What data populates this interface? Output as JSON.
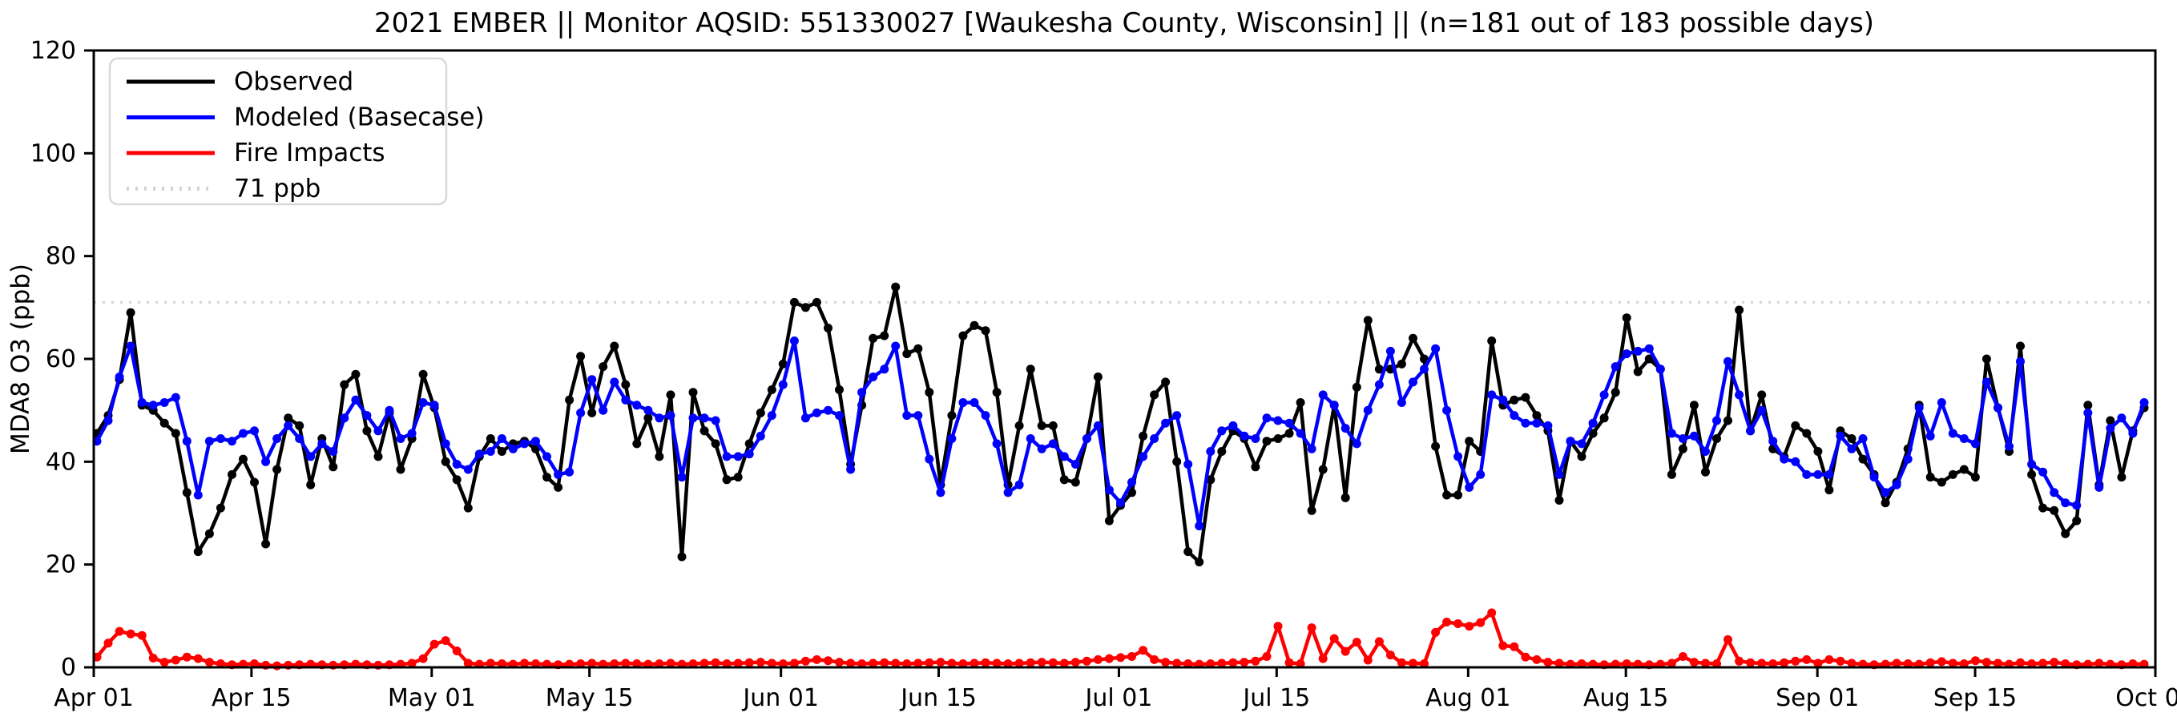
{
  "chart_data": {
    "type": "line",
    "title": "2021 EMBER || Monitor AQSID: 551330027 [Waukesha County, Wisconsin] || (n=181 out of 183 possible days)",
    "ylabel": "MDA8 O3 (ppb)",
    "ylim": [
      0,
      120
    ],
    "y_ticks": [
      0,
      20,
      40,
      60,
      80,
      100,
      120
    ],
    "x_start_date": "Apr 01",
    "x_end_date": "Oct 01",
    "n_days": 183,
    "grid": "off",
    "legend_position": "upper-left",
    "x_ticks": [
      {
        "label": "Apr 01",
        "day": 0
      },
      {
        "label": "Apr 15",
        "day": 14
      },
      {
        "label": "May 01",
        "day": 30
      },
      {
        "label": "May 15",
        "day": 44
      },
      {
        "label": "Jun 01",
        "day": 61
      },
      {
        "label": "Jun 15",
        "day": 75
      },
      {
        "label": "Jul 01",
        "day": 91
      },
      {
        "label": "Jul 15",
        "day": 105
      },
      {
        "label": "Aug 01",
        "day": 122
      },
      {
        "label": "Aug 15",
        "day": 136
      },
      {
        "label": "Sep 01",
        "day": 153
      },
      {
        "label": "Sep 15",
        "day": 167
      },
      {
        "label": "Oct 01",
        "day": 183
      }
    ],
    "threshold": {
      "label": "71 ppb",
      "value": 71,
      "color": "#d3d3d3",
      "style": "dotted"
    },
    "series": [
      {
        "name": "Observed",
        "color": "#000000",
        "values": [
          45.5,
          49,
          56,
          69,
          51,
          50,
          47.5,
          45.5,
          34,
          22.5,
          26,
          31,
          37.5,
          40.5,
          36,
          24,
          38.5,
          48.5,
          47,
          35.5,
          44.5,
          39,
          55,
          57,
          46,
          41,
          49.5,
          38.5,
          44.5,
          57,
          50.5,
          40,
          36.5,
          31,
          41,
          44.5,
          42,
          43.5,
          44,
          42.5,
          37,
          35,
          52,
          60.5,
          49.5,
          58.5,
          62.5,
          55,
          43.5,
          48.5,
          41,
          53,
          21.5,
          53.5,
          46,
          43.5,
          36.5,
          37,
          43.5,
          49.5,
          54,
          59,
          71,
          70,
          71,
          66,
          54,
          39.5,
          51,
          64,
          64.5,
          74,
          61,
          62,
          53.5,
          35.5,
          49,
          64.5,
          66.5,
          65.5,
          53.5,
          35.5,
          47,
          58,
          47,
          47,
          36.5,
          36,
          44.5,
          56.5,
          28.5,
          31.5,
          34,
          45,
          53,
          55.5,
          40,
          22.5,
          20.5,
          36.5,
          42,
          46,
          44.5,
          39,
          44,
          44.5,
          45.5,
          51.5,
          30.5,
          38.5,
          51,
          33,
          54.5,
          67.5,
          58,
          58,
          59,
          64,
          60,
          43,
          33.5,
          33.5,
          44,
          42,
          63.5,
          51,
          52,
          52.5,
          49,
          46,
          32.5,
          44,
          41,
          45.5,
          48.5,
          53.5,
          68,
          57.5,
          60,
          58,
          37.5,
          42.5,
          51,
          38,
          44.5,
          48,
          69.5,
          46,
          53,
          42.5,
          41,
          47,
          45.5,
          42,
          34.5,
          46,
          44.5,
          40.5,
          37.5,
          32,
          36,
          42.5,
          51,
          37,
          36,
          37.5,
          38.5,
          37,
          60,
          50.5,
          42,
          62.5,
          37.5,
          31,
          30.5,
          26,
          28.5,
          51,
          35.5,
          48,
          37,
          46,
          50.5
        ]
      },
      {
        "name": "Modeled (Basecase)",
        "color": "#0000ff",
        "values": [
          44,
          48,
          56.5,
          62.5,
          51.5,
          51,
          51.5,
          52.5,
          44,
          33.5,
          44,
          44.5,
          44,
          45.5,
          46,
          40,
          44.5,
          47,
          44.5,
          41,
          43.5,
          42,
          48.5,
          52,
          49,
          46,
          50,
          44.5,
          45.5,
          51.5,
          51,
          43.5,
          39.5,
          38.5,
          41.5,
          42,
          44.5,
          42.5,
          43.5,
          44,
          41,
          37.5,
          38,
          49.5,
          56,
          50,
          55.5,
          52,
          51,
          50,
          48.5,
          49,
          37,
          48.5,
          48.5,
          48,
          41,
          41,
          41.5,
          45,
          49,
          55,
          63.5,
          48.5,
          49.5,
          50,
          49,
          38.5,
          53.5,
          56.5,
          58,
          62.5,
          49,
          49,
          40.5,
          34,
          44.5,
          51.5,
          51.5,
          49,
          43.5,
          34,
          35.5,
          44.5,
          42.5,
          43.5,
          41,
          39.5,
          44.5,
          47,
          34.5,
          32,
          36,
          41,
          44.5,
          47.5,
          49,
          39.5,
          27.5,
          42,
          46,
          47,
          45,
          44.5,
          48.5,
          48,
          47.5,
          45.5,
          42.5,
          53,
          51,
          46.5,
          43.5,
          50,
          55,
          61.5,
          51.5,
          55.5,
          58,
          62,
          50,
          41,
          35,
          37.5,
          53,
          52,
          49,
          47.5,
          47.5,
          47,
          37.5,
          44,
          43.5,
          47.5,
          53,
          58.5,
          61,
          61.5,
          62,
          58,
          45.5,
          44.5,
          45,
          42,
          48,
          59.5,
          53,
          46,
          50,
          44,
          40.5,
          40,
          37.5,
          37.5,
          37.5,
          45,
          42.5,
          44.5,
          37,
          34,
          35.5,
          40.5,
          50.5,
          45,
          51.5,
          45.5,
          44.5,
          43.5,
          55.5,
          50.5,
          43,
          59.5,
          39.5,
          38,
          34,
          32,
          31.5,
          49.5,
          35,
          46.5,
          48.5,
          45.5,
          51.5
        ]
      },
      {
        "name": "Fire Impacts",
        "color": "#ff0000",
        "values": [
          2,
          4.7,
          7,
          6.5,
          6.2,
          1.8,
          1,
          1.4,
          2,
          1.7,
          1,
          0.7,
          0.5,
          0.6,
          0.7,
          0.4,
          0.3,
          0.4,
          0.5,
          0.6,
          0.5,
          0.4,
          0.5,
          0.6,
          0.5,
          0.4,
          0.5,
          0.6,
          0.8,
          1.7,
          4.5,
          5.2,
          3.2,
          0.8,
          0.6,
          0.8,
          0.7,
          0.6,
          0.8,
          0.7,
          0.6,
          0.5,
          0.6,
          0.7,
          0.8,
          0.6,
          0.7,
          0.8,
          0.7,
          0.6,
          0.7,
          0.8,
          0.6,
          0.7,
          0.8,
          0.9,
          0.7,
          0.8,
          0.9,
          1,
          0.8,
          0.7,
          0.8,
          1.2,
          1.5,
          1.3,
          1,
          0.8,
          0.7,
          0.8,
          0.9,
          0.8,
          0.7,
          0.8,
          0.9,
          1,
          0.8,
          0.7,
          0.8,
          0.9,
          0.8,
          0.7,
          0.8,
          0.9,
          1,
          0.9,
          0.8,
          1,
          1.2,
          1.5,
          1.7,
          1.9,
          2.1,
          3.3,
          1.5,
          1,
          0.8,
          0.7,
          0.6,
          0.7,
          0.8,
          0.9,
          1,
          1.2,
          2.1,
          8,
          0.9,
          0.7,
          7.7,
          1.7,
          5.6,
          3.1,
          4.9,
          1.4,
          5,
          2.4,
          0.9,
          0.8,
          0.7,
          6.8,
          8.8,
          8.5,
          8,
          8.7,
          10.6,
          4.2,
          4,
          2,
          1.5,
          1,
          0.8,
          0.6,
          0.7,
          0.6,
          0.5,
          0.6,
          0.7,
          0.6,
          0.5,
          0.6,
          0.8,
          2.1,
          1,
          0.8,
          0.7,
          5.4,
          1.2,
          0.9,
          0.8,
          0.7,
          0.9,
          1.2,
          1.5,
          0.8,
          1.5,
          1.2,
          0.8,
          0.6,
          0.5,
          0.6,
          0.8,
          0.7,
          0.6,
          0.9,
          1.1,
          0.8,
          0.7,
          1.3,
          1,
          0.8,
          0.6,
          0.9,
          0.7,
          0.8,
          1,
          0.7,
          0.5,
          0.6,
          0.8,
          0.6,
          0.5,
          0.7,
          0.6
        ]
      }
    ],
    "legend_entries": [
      "Observed",
      "Modeled (Basecase)",
      "Fire Impacts",
      "71 ppb"
    ]
  },
  "style": {
    "background": "#ffffff",
    "spine_color": "#000000",
    "text_color": "#000000",
    "legend_border": "#d9d9d9",
    "marker_radius": 5.5,
    "line_width": 4.5
  }
}
